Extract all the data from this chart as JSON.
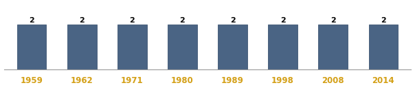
{
  "categories": [
    "1959",
    "1962",
    "1971",
    "1980",
    "1989",
    "1998",
    "2008",
    "2014"
  ],
  "values": [
    2,
    2,
    2,
    2,
    2,
    2,
    2,
    2
  ],
  "bar_color": "#4a6484",
  "bar_edge_color": "#3d5472",
  "value_label_color": "#000000",
  "xlabel_color": "#d4a017",
  "background_color": "#ffffff",
  "ylim": [
    0,
    2.6
  ],
  "value_fontsize": 8,
  "xlabel_fontsize": 8.5,
  "bar_width": 0.58
}
